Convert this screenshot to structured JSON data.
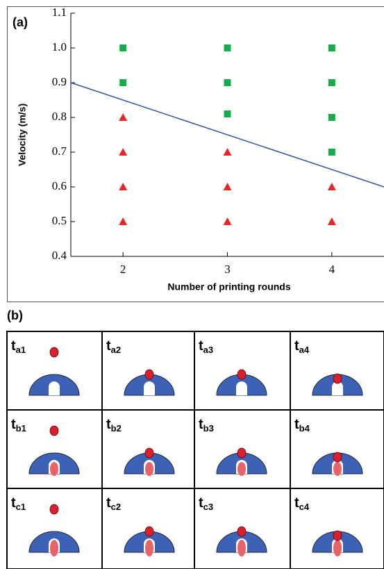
{
  "chart_data": {
    "type": "scatter",
    "panel_label": "(a)",
    "x_label": "Number of printing rounds",
    "y_label": "Velocity  (m/s)",
    "xlim": [
      1.5,
      4.5
    ],
    "ylim": [
      0.4,
      1.1
    ],
    "xticks": [
      2,
      3,
      4
    ],
    "yticks": [
      0.4,
      0.5,
      0.6,
      0.7,
      0.8,
      0.9,
      {
        "value": 1,
        "label": "1.0"
      },
      1.1
    ],
    "series": [
      {
        "marker": "square",
        "color": "#14ad4e",
        "x": [
          2,
          2,
          3,
          3,
          3,
          4,
          4,
          4,
          4
        ],
        "values": [
          1.0,
          0.9,
          1.0,
          0.9,
          0.81,
          1.0,
          0.9,
          0.8,
          0.7
        ]
      },
      {
        "marker": "triangle",
        "color": "#e8262a",
        "x": [
          2,
          2,
          2,
          2,
          3,
          3,
          3,
          4,
          4
        ],
        "values": [
          0.8,
          0.7,
          0.6,
          0.5,
          0.7,
          0.6,
          0.5,
          0.6,
          0.5
        ]
      },
      {
        "marker": "line",
        "color": "#2e4fa3",
        "x": [
          1.5,
          4.5
        ],
        "values": [
          0.9,
          0.6
        ]
      }
    ]
  },
  "panel_b": {
    "label": "(b)",
    "rows": [
      [
        {
          "t": "t",
          "sub": "a1"
        },
        {
          "t": "t",
          "sub": "a2"
        },
        {
          "t": "t",
          "sub": "a3"
        },
        {
          "t": "t",
          "sub": "a4"
        }
      ],
      [
        {
          "t": "t",
          "sub": "b1"
        },
        {
          "t": "t",
          "sub": "b2"
        },
        {
          "t": "t",
          "sub": "b3"
        },
        {
          "t": "t",
          "sub": "b4"
        }
      ],
      [
        {
          "t": "t",
          "sub": "c1"
        },
        {
          "t": "t",
          "sub": "c2"
        },
        {
          "t": "t",
          "sub": "c3"
        },
        {
          "t": "t",
          "sub": "c4"
        }
      ]
    ]
  }
}
